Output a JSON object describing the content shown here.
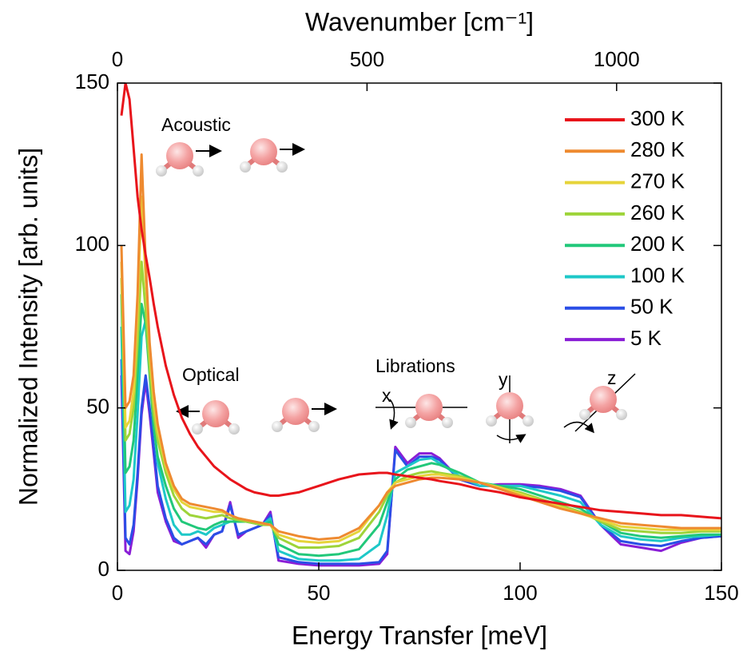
{
  "chart_data": {
    "type": "line",
    "xlabel": "Energy Transfer [meV]",
    "ylabel": "Normalized Intensity [arb. units]",
    "x2label": "Wavenumber [cm⁻¹]",
    "xlim": [
      0,
      150
    ],
    "xticks": [
      0,
      50,
      100,
      150
    ],
    "ylim": [
      0,
      150
    ],
    "yticks": [
      0,
      50,
      100,
      150
    ],
    "x2lim": [
      0,
      1210
    ],
    "x2ticks": [
      0,
      500,
      1000
    ],
    "legend": "upper right",
    "annotations": [
      "Acoustic",
      "Optical",
      "Librations",
      "x",
      "y",
      "z"
    ],
    "x": [
      1,
      2,
      3,
      4,
      5,
      6,
      7,
      8,
      9,
      10,
      12,
      14,
      16,
      18,
      20,
      22,
      24,
      26,
      28,
      30,
      32,
      34,
      36,
      38,
      40,
      45,
      50,
      55,
      60,
      65,
      67,
      69,
      72,
      75,
      78,
      80,
      85,
      90,
      95,
      100,
      105,
      110,
      115,
      120,
      125,
      130,
      135,
      140,
      145,
      150
    ],
    "series": [
      {
        "name": "300 K",
        "color": "#e8141b",
        "values": [
          140,
          150,
          145,
          130,
          115,
          105,
          97,
          90,
          82,
          75,
          63,
          54,
          47,
          42,
          38,
          35,
          32,
          30,
          28,
          26.5,
          25,
          24,
          23.5,
          23,
          23,
          24,
          26,
          28,
          29.5,
          30,
          30,
          29.5,
          29,
          28.5,
          28,
          27.5,
          26.5,
          25,
          24,
          22.5,
          21.5,
          20.5,
          19.5,
          18.5,
          18,
          17.5,
          17,
          17,
          16.5,
          16
        ]
      },
      {
        "name": "280 K",
        "color": "#ee8a30",
        "values": [
          100,
          50,
          52,
          60,
          85,
          128,
          95,
          70,
          55,
          45,
          33,
          26,
          22,
          20.5,
          20,
          19.5,
          19,
          18.5,
          17,
          16,
          15.5,
          15,
          14.5,
          14,
          12,
          10.5,
          9.5,
          10,
          13,
          20,
          24,
          26,
          27,
          28,
          28.5,
          28.5,
          28,
          27,
          25,
          23,
          21,
          19,
          17.5,
          16,
          14.5,
          14,
          13.5,
          13,
          13,
          13
        ]
      },
      {
        "name": "270 K",
        "color": "#e6d43a",
        "values": [
          95,
          44,
          46,
          55,
          80,
          115,
          90,
          68,
          52,
          43,
          32,
          25,
          21,
          19.5,
          19,
          18.5,
          18,
          18,
          17,
          16,
          15.5,
          15,
          14.5,
          14,
          11,
          9,
          8.5,
          9,
          12,
          20,
          24,
          27,
          28,
          29,
          29.5,
          29.5,
          28.5,
          27,
          25.5,
          23.5,
          21.5,
          19.5,
          17.5,
          15.5,
          13.5,
          13,
          12.5,
          12.5,
          12.5,
          12.5
        ]
      },
      {
        "name": "260 K",
        "color": "#9ed43a",
        "values": [
          90,
          40,
          42,
          50,
          70,
          95,
          80,
          62,
          48,
          40,
          30,
          23,
          19,
          17,
          16.5,
          16,
          16.5,
          17,
          16,
          15.5,
          15,
          14.5,
          14,
          14,
          10,
          7,
          7,
          7.5,
          10,
          18,
          23,
          27,
          29,
          30,
          30.5,
          30,
          29,
          27,
          25.5,
          24,
          22,
          20,
          18,
          15,
          12.5,
          12,
          11.5,
          11.5,
          12,
          12
        ]
      },
      {
        "name": "200 K",
        "color": "#22c87a",
        "values": [
          85,
          30,
          32,
          40,
          60,
          82,
          76,
          60,
          44,
          35,
          26,
          19,
          15,
          14,
          13,
          12.5,
          14,
          15,
          15,
          15,
          15,
          14.5,
          14,
          15,
          8,
          5,
          4.5,
          5,
          6.5,
          14,
          21,
          28,
          31,
          32,
          33,
          32.5,
          30,
          27,
          26,
          25,
          23,
          21,
          19,
          15,
          11.5,
          10.5,
          10,
          10.5,
          11,
          11
        ]
      },
      {
        "name": "100 K",
        "color": "#1ec8c8",
        "values": [
          75,
          18,
          20,
          28,
          48,
          72,
          77,
          62,
          45,
          33,
          22,
          14,
          11,
          11,
          12,
          11,
          13,
          14,
          15,
          15,
          15,
          14.5,
          14,
          16,
          6,
          3.5,
          3,
          3,
          3.5,
          8,
          17,
          30,
          32,
          34,
          34.5,
          33,
          29,
          26,
          26,
          26,
          24.5,
          23,
          21,
          14,
          10.5,
          9.5,
          9,
          10,
          10.5,
          11
        ]
      },
      {
        "name": "50 K",
        "color": "#2a4ee6",
        "values": [
          65,
          10,
          8,
          14,
          30,
          50,
          60,
          50,
          38,
          26,
          16,
          10,
          8,
          9,
          10,
          8,
          11,
          12,
          20,
          11,
          12,
          13,
          14,
          17,
          4,
          2.5,
          2,
          2,
          2,
          2.5,
          6,
          37,
          32,
          35,
          35,
          34,
          28,
          26,
          26,
          26,
          25.5,
          24.5,
          22.5,
          14,
          9,
          8,
          7.5,
          9,
          10,
          10.5
        ]
      },
      {
        "name": "5 K",
        "color": "#8a1ed6",
        "values": [
          60,
          6,
          5,
          12,
          28,
          48,
          58,
          48,
          36,
          24,
          15,
          9,
          8,
          9,
          10,
          7,
          11,
          12,
          21,
          10,
          12,
          13,
          14,
          18,
          3,
          2,
          1.5,
          1.5,
          1.5,
          2,
          5,
          38,
          33,
          36,
          36,
          34.5,
          28,
          26,
          26.5,
          26.5,
          26,
          25,
          23,
          14,
          8,
          7,
          6,
          8.5,
          10,
          10.5
        ]
      }
    ]
  }
}
